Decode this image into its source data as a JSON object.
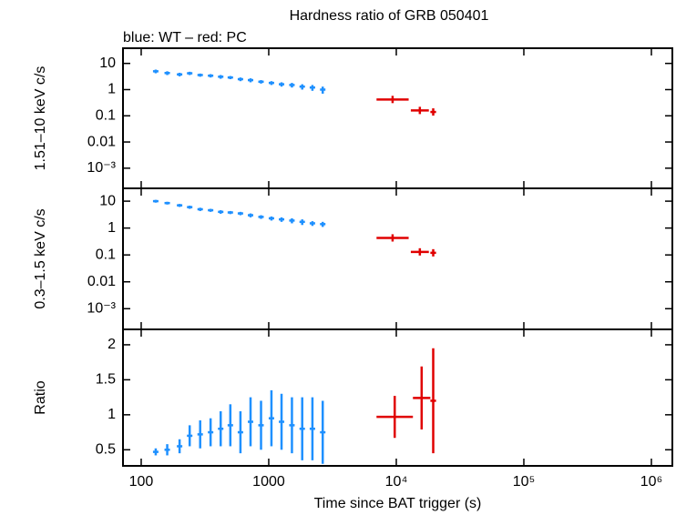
{
  "chart_data": [
    {
      "type": "errorbar",
      "title": "Hardness ratio of GRB 050401",
      "subtitle": "blue: WT – red: PC",
      "ylabel": "1.51–10 keV c/s",
      "xscale": "log",
      "yscale": "log",
      "xlim": [
        72,
        1460000
      ],
      "ylim": [
        0.00017,
        38
      ],
      "yticks": [
        10,
        1,
        0.1,
        0.01,
        {
          "value": 0.001,
          "label": "10⁻³"
        }
      ],
      "series": [
        {
          "color": "#1e90ff",
          "x": [
            130,
            160,
            200,
            240,
            290,
            350,
            420,
            500,
            600,
            720,
            870,
            1050,
            1260,
            1520,
            1830,
            2200,
            2650
          ],
          "values": [
            5.0,
            4.3,
            3.8,
            4.2,
            3.6,
            3.4,
            3.1,
            2.9,
            2.5,
            2.3,
            2.0,
            1.8,
            1.6,
            1.5,
            1.3,
            1.2,
            1.0
          ],
          "errors": [
            0.8,
            0.7,
            0.6,
            0.6,
            0.5,
            0.5,
            0.5,
            0.4,
            0.4,
            0.4,
            0.3,
            0.3,
            0.3,
            0.3,
            0.3,
            0.3,
            0.3
          ]
        },
        {
          "color": "#e00000",
          "x_low": [
            7000,
            13000,
            18500
          ],
          "x_high": [
            12500,
            18000,
            20500
          ],
          "values": [
            0.42,
            0.16,
            0.14
          ]
        }
      ]
    },
    {
      "type": "errorbar",
      "ylabel": "0.3–1.5 keV c/s",
      "xscale": "log",
      "yscale": "log",
      "xlim": [
        72,
        1460000
      ],
      "ylim": [
        0.00017,
        30
      ],
      "yticks": [
        10,
        1,
        0.1,
        0.01,
        {
          "value": 0.001,
          "label": "10⁻³"
        }
      ],
      "series": [
        {
          "color": "#1e90ff",
          "x": [
            130,
            160,
            200,
            240,
            290,
            350,
            420,
            500,
            600,
            720,
            870,
            1050,
            1260,
            1520,
            1830,
            2200,
            2650
          ],
          "values": [
            10,
            8.5,
            7,
            6,
            5,
            4.6,
            4,
            3.8,
            3.5,
            3,
            2.6,
            2.3,
            2.1,
            1.9,
            1.7,
            1.5,
            1.4
          ],
          "errors": [
            1.2,
            1.0,
            0.9,
            0.8,
            0.7,
            0.6,
            0.6,
            0.5,
            0.5,
            0.5,
            0.4,
            0.4,
            0.4,
            0.4,
            0.4,
            0.3,
            0.3
          ]
        },
        {
          "color": "#e00000",
          "x_low": [
            7000,
            13000,
            18500
          ],
          "x_high": [
            12500,
            18000,
            20500
          ],
          "values": [
            0.43,
            0.13,
            0.12
          ]
        }
      ]
    },
    {
      "type": "errorbar",
      "ylabel": "Ratio",
      "xlabel": "Time since BAT trigger (s)",
      "xscale": "log",
      "xlim": [
        72,
        1460000
      ],
      "ylim": [
        0.27,
        2.22
      ],
      "xticks": [
        100,
        1000,
        {
          "value": 10000,
          "label": "10⁴"
        },
        {
          "value": 100000,
          "label": "10⁵"
        },
        {
          "value": 1000000,
          "label": "10⁶"
        }
      ],
      "yticks": [
        0.5,
        1,
        1.5,
        2
      ],
      "series": [
        {
          "color": "#1e90ff",
          "x": [
            130,
            160,
            200,
            240,
            290,
            350,
            420,
            500,
            600,
            720,
            870,
            1050,
            1260,
            1520,
            1830,
            2200,
            2650
          ],
          "values": [
            0.47,
            0.5,
            0.55,
            0.7,
            0.72,
            0.75,
            0.8,
            0.85,
            0.75,
            0.9,
            0.85,
            0.95,
            0.9,
            0.85,
            0.8,
            0.8,
            0.75
          ],
          "errors": [
            0.05,
            0.08,
            0.1,
            0.15,
            0.2,
            0.2,
            0.25,
            0.3,
            0.3,
            0.35,
            0.35,
            0.4,
            0.4,
            0.4,
            0.45,
            0.45,
            0.45
          ]
        },
        {
          "color": "#e00000",
          "x_low": [
            7000,
            13500,
            18500
          ],
          "x_high": [
            13500,
            18500,
            20500
          ],
          "values": [
            0.97,
            1.24,
            1.2
          ],
          "errors": [
            0.3,
            0.45,
            0.75
          ]
        }
      ]
    }
  ]
}
